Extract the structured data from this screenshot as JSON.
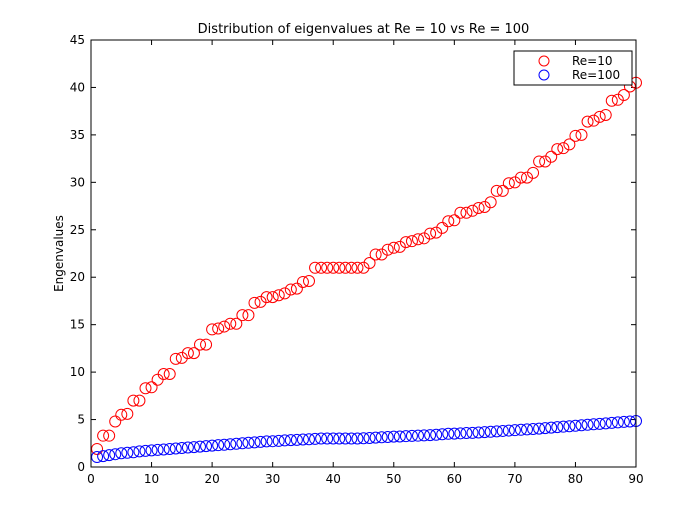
{
  "chart_data": {
    "type": "scatter",
    "title": "Distribution of eigenvalues at Re = 10 vs Re = 100",
    "xlabel": "",
    "ylabel": "Engenvalues",
    "xlim": [
      0,
      90
    ],
    "ylim": [
      0,
      45
    ],
    "xticks": [
      0,
      10,
      20,
      30,
      40,
      50,
      60,
      70,
      80,
      90
    ],
    "yticks": [
      0,
      5,
      10,
      15,
      20,
      25,
      30,
      35,
      40,
      45
    ],
    "grid": false,
    "legend_position": "top-right",
    "marker": "open-circle",
    "series": [
      {
        "name": "Re=10",
        "color": "#ff0000",
        "x": [
          1,
          2,
          3,
          4,
          5,
          6,
          7,
          8,
          9,
          10,
          11,
          12,
          13,
          14,
          15,
          16,
          17,
          18,
          19,
          20,
          21,
          22,
          23,
          24,
          25,
          26,
          27,
          28,
          29,
          30,
          31,
          32,
          33,
          34,
          35,
          36,
          37,
          38,
          39,
          40,
          41,
          42,
          43,
          44,
          45,
          46,
          47,
          48,
          49,
          50,
          51,
          52,
          53,
          54,
          55,
          56,
          57,
          58,
          59,
          60,
          61,
          62,
          63,
          64,
          65,
          66,
          67,
          68,
          69,
          70,
          71,
          72,
          73,
          74,
          75,
          76,
          77,
          78,
          79,
          80,
          81,
          82,
          83,
          84,
          85,
          86,
          87,
          88,
          89,
          90
        ],
        "values": [
          1.9,
          3.3,
          3.3,
          4.8,
          5.5,
          5.6,
          7.0,
          7.0,
          8.3,
          8.4,
          9.2,
          9.8,
          9.8,
          11.4,
          11.5,
          12.0,
          12.0,
          12.9,
          12.9,
          14.5,
          14.6,
          14.8,
          15.1,
          15.1,
          16.0,
          16.0,
          17.3,
          17.4,
          17.9,
          17.9,
          18.1,
          18.3,
          18.7,
          18.8,
          19.5,
          19.6,
          21.0,
          21.0,
          21.0,
          21.0,
          21.0,
          21.0,
          21.0,
          21.0,
          21.0,
          21.5,
          22.4,
          22.4,
          22.9,
          23.1,
          23.2,
          23.7,
          23.8,
          24.0,
          24.1,
          24.6,
          24.7,
          25.2,
          25.9,
          26.0,
          26.8,
          26.8,
          27.0,
          27.3,
          27.4,
          27.9,
          29.1,
          29.1,
          29.9,
          30.0,
          30.5,
          30.5,
          31.0,
          32.2,
          32.2,
          32.7,
          33.5,
          33.6,
          34.0,
          34.9,
          35.0,
          36.4,
          36.5,
          36.9,
          37.1,
          38.6,
          38.7,
          39.2,
          40.1,
          40.5
        ]
      },
      {
        "name": "Re=100",
        "color": "#0000ff",
        "x": [
          1,
          2,
          3,
          4,
          5,
          6,
          7,
          8,
          9,
          10,
          11,
          12,
          13,
          14,
          15,
          16,
          17,
          18,
          19,
          20,
          21,
          22,
          23,
          24,
          25,
          26,
          27,
          28,
          29,
          30,
          31,
          32,
          33,
          34,
          35,
          36,
          37,
          38,
          39,
          40,
          41,
          42,
          43,
          44,
          45,
          46,
          47,
          48,
          49,
          50,
          51,
          52,
          53,
          54,
          55,
          56,
          57,
          58,
          59,
          60,
          61,
          62,
          63,
          64,
          65,
          66,
          67,
          68,
          69,
          70,
          71,
          72,
          73,
          74,
          75,
          76,
          77,
          78,
          79,
          80,
          81,
          82,
          83,
          84,
          85,
          86,
          87,
          88,
          89,
          90
        ],
        "values": [
          1.05,
          1.15,
          1.25,
          1.35,
          1.45,
          1.5,
          1.55,
          1.65,
          1.7,
          1.75,
          1.8,
          1.85,
          1.9,
          1.95,
          2.0,
          2.05,
          2.1,
          2.15,
          2.2,
          2.25,
          2.3,
          2.35,
          2.4,
          2.45,
          2.5,
          2.55,
          2.6,
          2.65,
          2.7,
          2.72,
          2.75,
          2.8,
          2.83,
          2.86,
          2.9,
          2.93,
          2.96,
          3.0,
          3.0,
          3.0,
          3.0,
          3.0,
          3.0,
          3.0,
          3.03,
          3.06,
          3.1,
          3.13,
          3.16,
          3.2,
          3.22,
          3.25,
          3.28,
          3.3,
          3.33,
          3.36,
          3.4,
          3.45,
          3.5,
          3.52,
          3.55,
          3.58,
          3.6,
          3.64,
          3.68,
          3.72,
          3.76,
          3.8,
          3.84,
          3.88,
          3.92,
          3.96,
          4.0,
          4.05,
          4.1,
          4.15,
          4.2,
          4.25,
          4.3,
          4.35,
          4.4,
          4.45,
          4.5,
          4.55,
          4.6,
          4.65,
          4.7,
          4.75,
          4.8,
          4.85
        ]
      }
    ]
  }
}
